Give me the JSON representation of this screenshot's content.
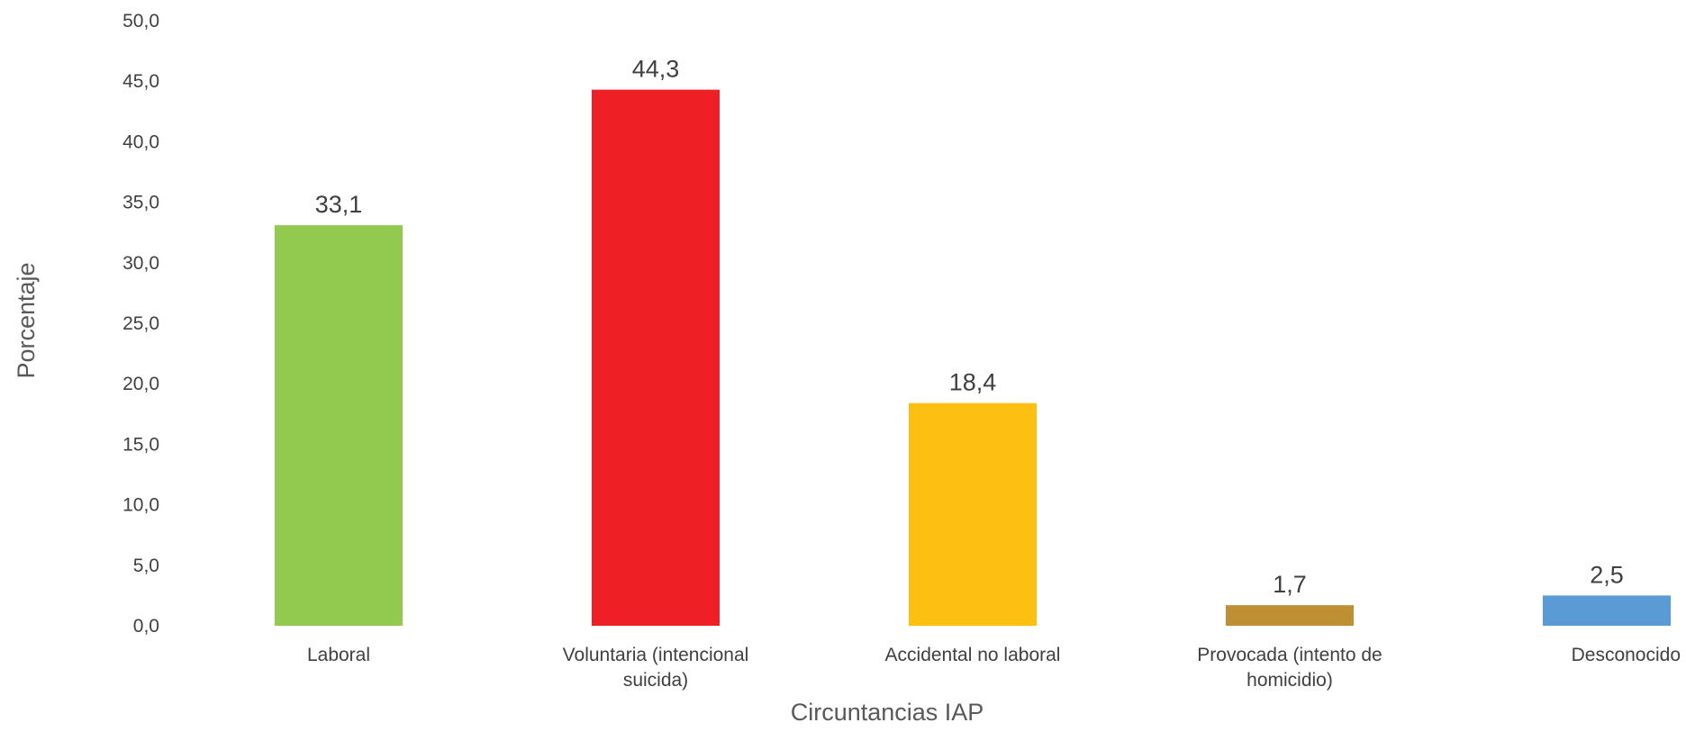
{
  "chart_data": {
    "type": "bar",
    "categories": [
      [
        "Laboral"
      ],
      [
        "Voluntaria (intencional",
        "suicida)"
      ],
      [
        "Accidental no laboral"
      ],
      [
        "Provocada (intento de",
        "homicidio)"
      ],
      [
        "Desconocido"
      ]
    ],
    "values": [
      33.1,
      44.3,
      18.4,
      1.7,
      2.5
    ],
    "value_labels": [
      "33,1",
      "44,3",
      "18,4",
      "1,7",
      "2,5"
    ],
    "colors": [
      "#92c94f",
      "#ee2025",
      "#fdbf12",
      "#bf8f33",
      "#5b9bd5"
    ],
    "xlabel": "Circuntancias IAP",
    "ylabel": "Porcentaje",
    "ylim": [
      0,
      50
    ],
    "yticks": [
      "0,0",
      "5,0",
      "10,0",
      "15,0",
      "20,0",
      "25,0",
      "30,0",
      "35,0",
      "40,0",
      "45,0",
      "50,0"
    ],
    "grid": false,
    "legend": "none"
  }
}
